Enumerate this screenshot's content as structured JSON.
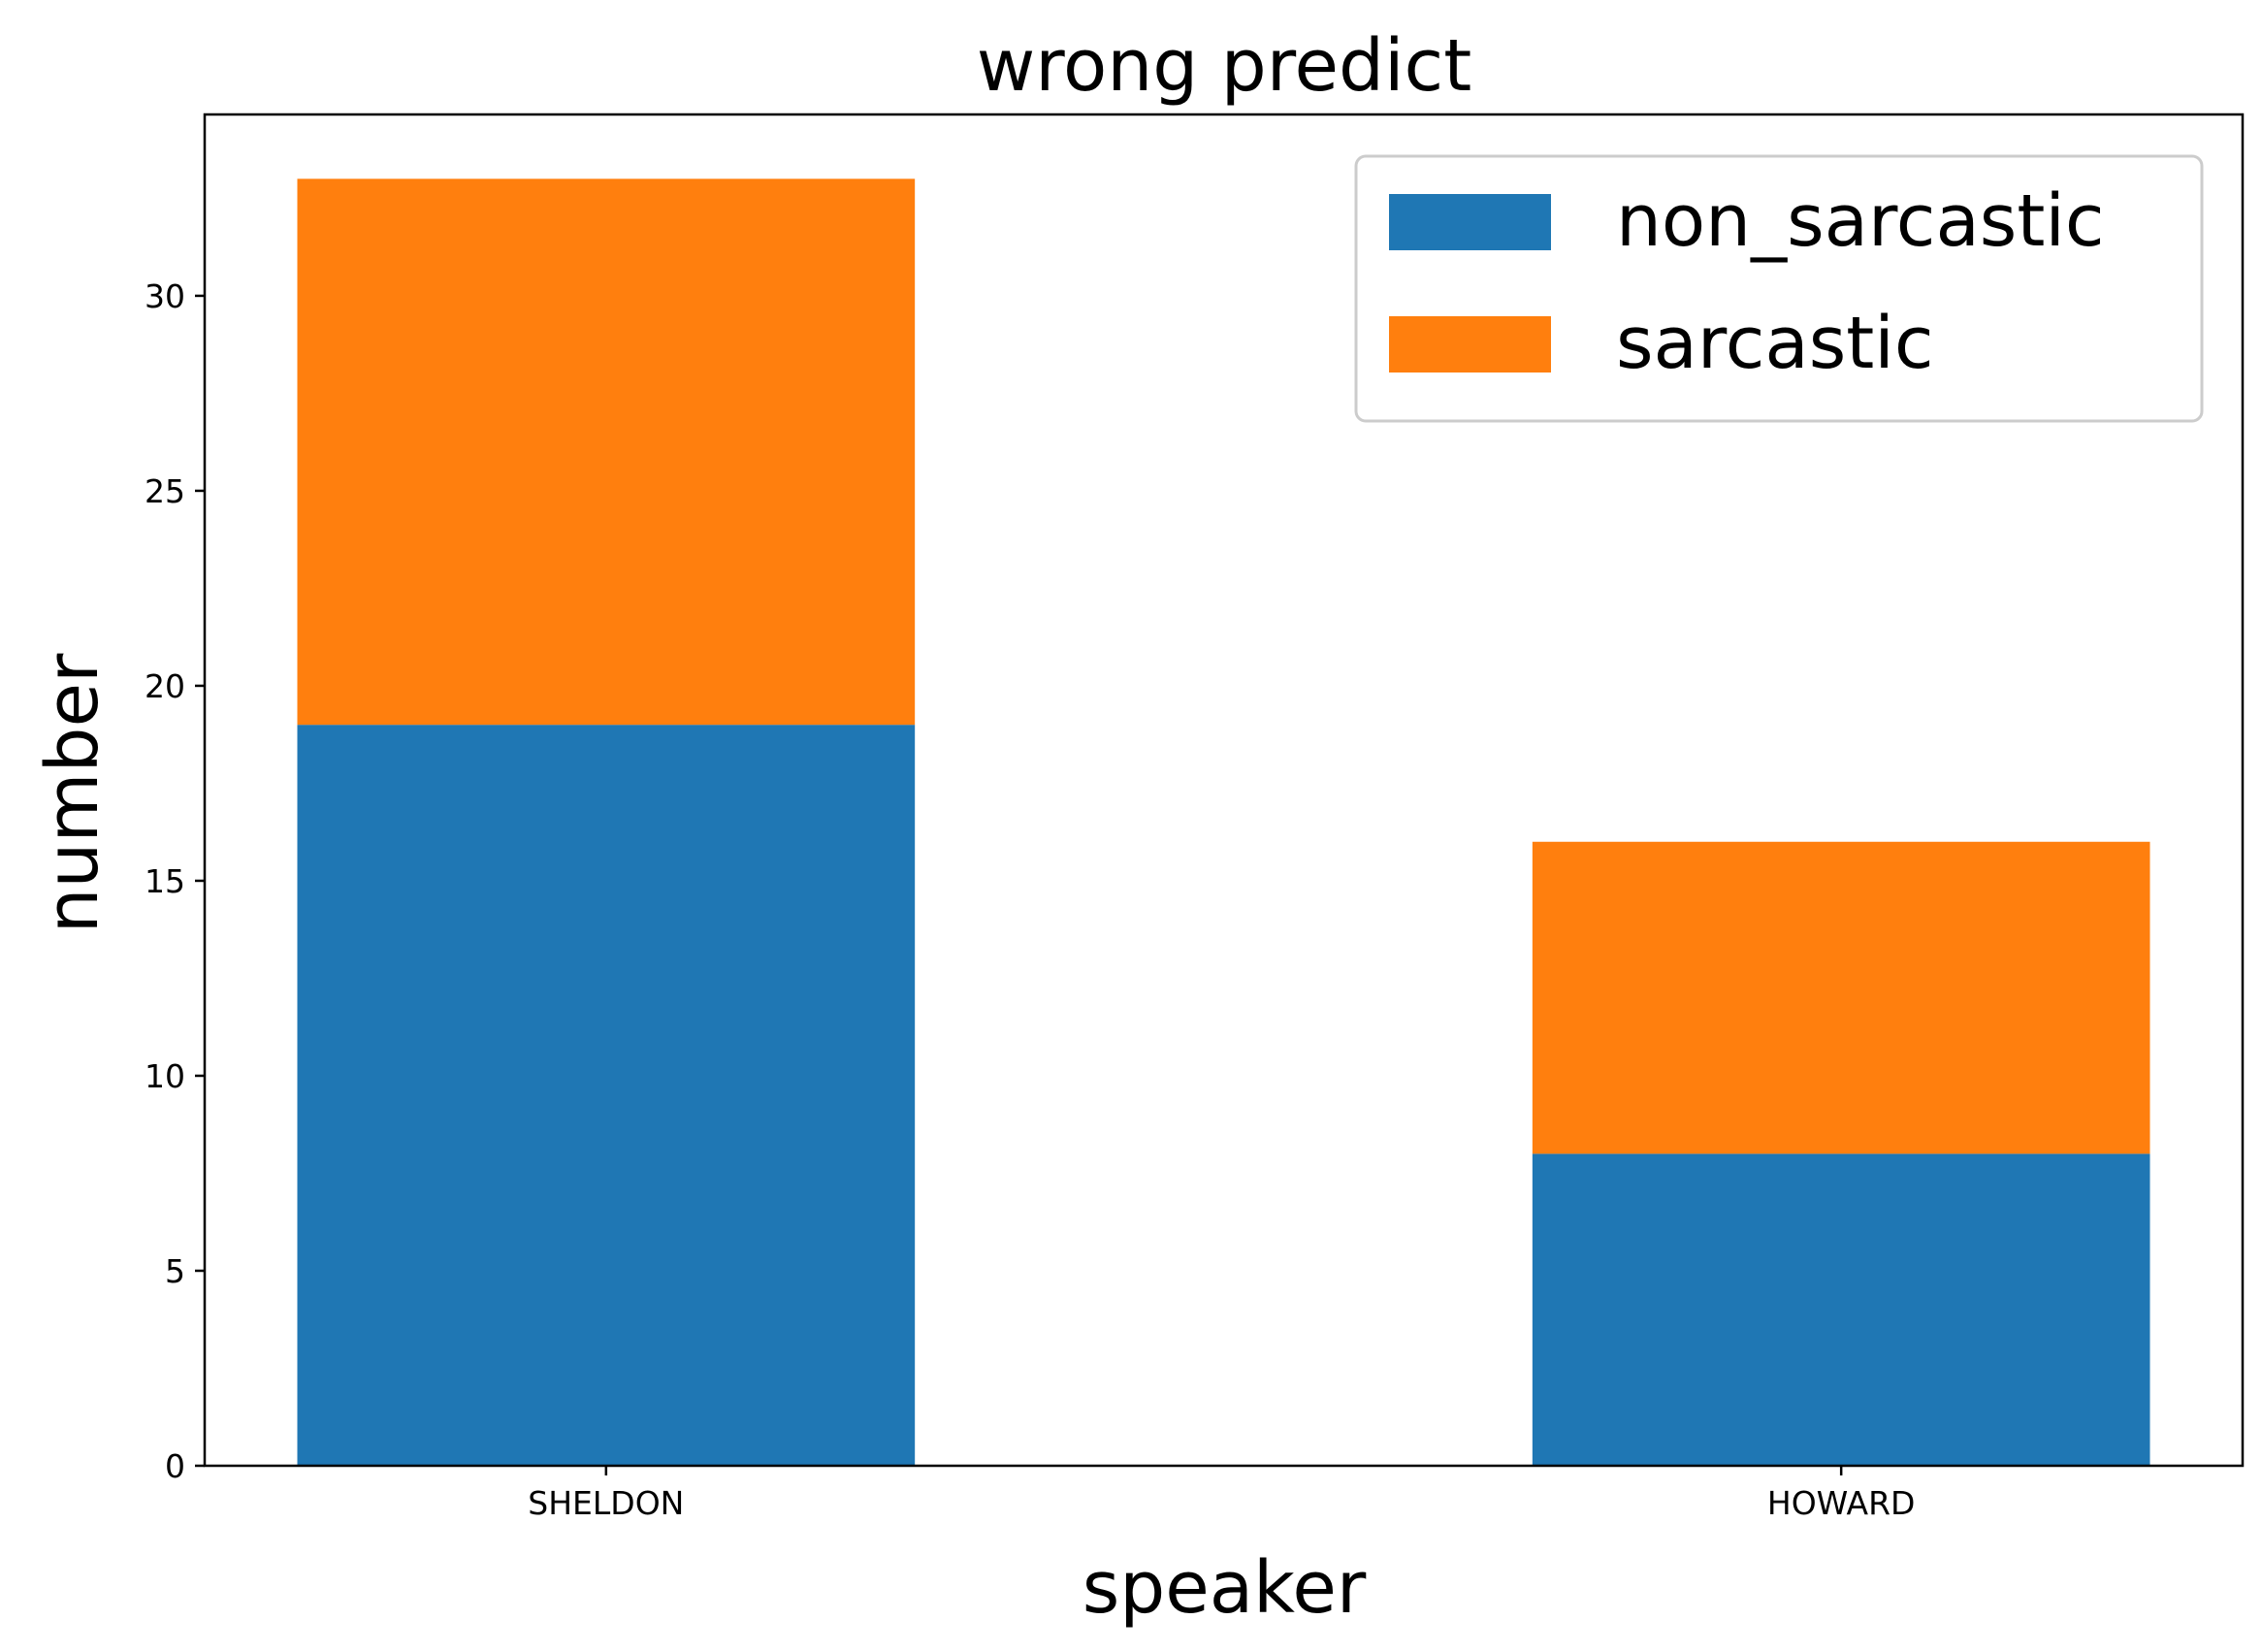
{
  "chart_data": {
    "type": "bar",
    "stacked": true,
    "title": "wrong predict",
    "xlabel": "speaker",
    "ylabel": "number",
    "categories": [
      "SHELDON",
      "HOWARD"
    ],
    "series": [
      {
        "name": "non_sarcastic",
        "values": [
          19,
          8
        ],
        "color": "#1f77b4"
      },
      {
        "name": "sarcastic",
        "values": [
          14,
          8
        ],
        "color": "#ff7f0e"
      }
    ],
    "ylim": [
      0,
      34.65
    ],
    "yticks": [
      0,
      5,
      10,
      15,
      20,
      25,
      30
    ],
    "grid": false,
    "legend_position": "top-right"
  }
}
